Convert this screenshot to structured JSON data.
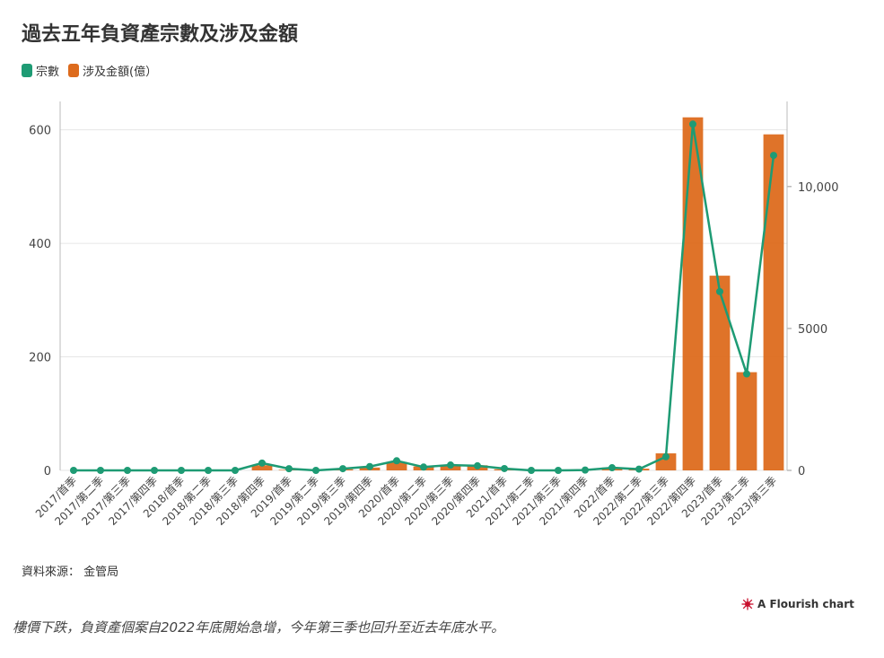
{
  "title": "過去五年負資產宗數及涉及金額",
  "legend": [
    {
      "label": "宗數",
      "color": "#1e9b74"
    },
    {
      "label": "涉及金額(億）",
      "color": "#dd6b1d"
    }
  ],
  "source": "資料來源： 金管局",
  "flourish_label": "A Flourish chart",
  "caption": "樓價下跌，負資產個案自2022年底開始急增，今年第三季也回升至近去年底水平。",
  "chart_data": {
    "type": "bar",
    "categories": [
      "2017/首季",
      "2017/第二季",
      "2017/第三季",
      "2017/第四季",
      "2018/首季",
      "2018/第二季",
      "2018/第三季",
      "2018/第四季",
      "2019/首季",
      "2019/第二季",
      "2019/第三季",
      "2019/第四季",
      "2020/首季",
      "2020/第二季",
      "2020/第三季",
      "2020/第四季",
      "2021/首季",
      "2021/第二季",
      "2021/第三季",
      "2021/第四季",
      "2022/首季",
      "2022/第二季",
      "2022/第三季",
      "2022/第四季",
      "2023/首季",
      "2023/第二季",
      "2023/第三季"
    ],
    "series": [
      {
        "name": "宗數",
        "type": "line",
        "axis": "right",
        "color": "#1e9b74",
        "values": [
          0,
          0,
          0,
          0,
          0,
          0,
          0,
          258,
          59,
          0,
          60,
          135,
          339,
          117,
          189,
          161,
          65,
          0,
          0,
          12,
          93,
          45,
          482,
          12200,
          6300,
          3400,
          11100
        ]
      },
      {
        "name": "涉及金額(億）",
        "type": "bar",
        "axis": "left",
        "color": "#dd6b1d",
        "values": [
          0,
          0,
          0,
          0,
          0,
          0,
          0,
          9,
          1,
          0,
          2,
          5,
          15,
          7,
          10,
          9,
          2,
          0,
          0,
          1,
          5,
          3,
          30,
          622,
          343,
          173,
          592
        ]
      }
    ],
    "y_left": {
      "range": [
        0,
        650
      ],
      "ticks": [
        0,
        200,
        400,
        600
      ]
    },
    "y_right": {
      "range": [
        0,
        13000
      ],
      "ticks": [
        0,
        5000,
        10000
      ],
      "tick_labels": [
        "0",
        "5000",
        "10,000"
      ]
    },
    "grid": true,
    "legend_position": "top-left"
  }
}
